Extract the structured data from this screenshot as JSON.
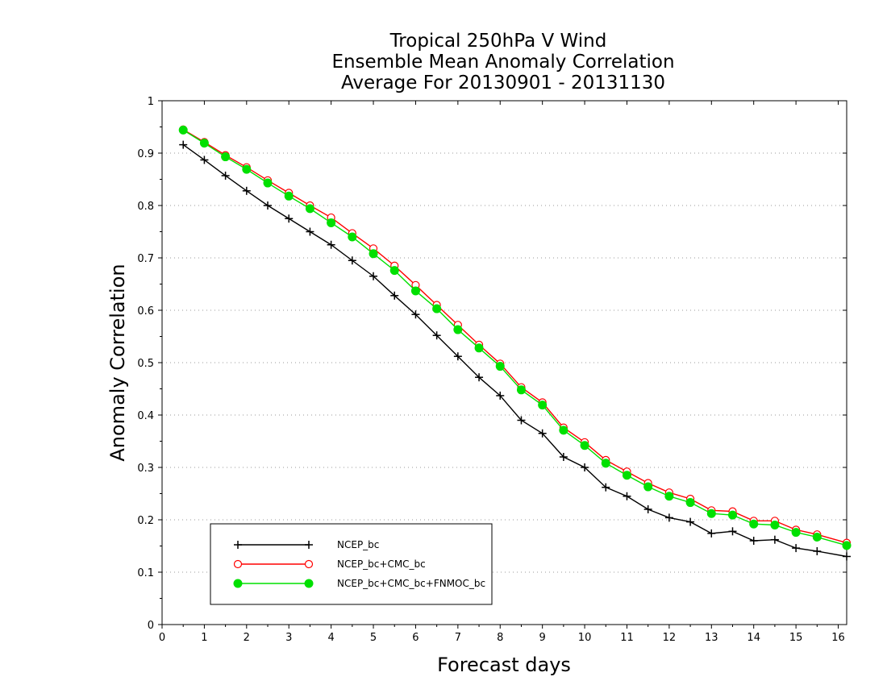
{
  "chart_data": {
    "type": "line",
    "title": [
      "Tropical 250hPa V Wind",
      "Ensemble Mean Anomaly Correlation",
      "Average For 20130901 - 20131130"
    ],
    "xlabel": "Forecast days",
    "ylabel": "Anomaly Correlation",
    "xlim": [
      0,
      16.2
    ],
    "ylim": [
      0,
      1
    ],
    "xticks": [
      0,
      1,
      2,
      3,
      4,
      5,
      6,
      7,
      8,
      9,
      10,
      11,
      12,
      13,
      14,
      15,
      16
    ],
    "yticks": [
      0,
      0.1,
      0.2,
      0.3,
      0.4,
      0.5,
      0.6,
      0.7,
      0.8,
      0.9,
      1
    ],
    "ytick_labels": [
      "0",
      "0.1",
      "0.2",
      "0.3",
      "0.4",
      "0.5",
      "0.6",
      "0.7",
      "0.8",
      "0.9",
      "1"
    ],
    "grid": "horizontal dotted",
    "legend_position": "bottom-left",
    "x": [
      0.5,
      1,
      1.5,
      2,
      2.5,
      3,
      3.5,
      4,
      4.5,
      5,
      5.5,
      6,
      6.5,
      7,
      7.5,
      8,
      8.5,
      9,
      9.5,
      10,
      10.5,
      11,
      11.5,
      12,
      12.5,
      13,
      13.5,
      14,
      14.5,
      15,
      15.5,
      16.2
    ],
    "series": [
      {
        "name": "NCEP_bc",
        "color": "#000000",
        "marker": "plus",
        "values": [
          0.916,
          0.887,
          0.857,
          0.828,
          0.8,
          0.775,
          0.75,
          0.725,
          0.695,
          0.665,
          0.628,
          0.592,
          0.552,
          0.512,
          0.472,
          0.437,
          0.39,
          0.365,
          0.32,
          0.3,
          0.262,
          0.245,
          0.22,
          0.204,
          0.196,
          0.174,
          0.178,
          0.16,
          0.162,
          0.146,
          0.14,
          0.13
        ]
      },
      {
        "name": "NCEP_bc+CMC_bc",
        "color": "#ff0000",
        "marker": "open-circle",
        "values": [
          0.945,
          0.921,
          0.896,
          0.873,
          0.848,
          0.824,
          0.8,
          0.777,
          0.747,
          0.718,
          0.685,
          0.648,
          0.61,
          0.572,
          0.534,
          0.498,
          0.453,
          0.424,
          0.376,
          0.348,
          0.314,
          0.292,
          0.27,
          0.252,
          0.24,
          0.218,
          0.216,
          0.198,
          0.198,
          0.181,
          0.172,
          0.156
        ]
      },
      {
        "name": "NCEP_bc+CMC_bc+FNMOC_bc",
        "color": "#00e000",
        "marker": "filled-circle",
        "values": [
          0.944,
          0.919,
          0.893,
          0.869,
          0.843,
          0.818,
          0.794,
          0.767,
          0.74,
          0.708,
          0.676,
          0.637,
          0.603,
          0.563,
          0.528,
          0.493,
          0.448,
          0.419,
          0.371,
          0.342,
          0.308,
          0.285,
          0.263,
          0.245,
          0.233,
          0.212,
          0.209,
          0.192,
          0.19,
          0.176,
          0.167,
          0.151
        ]
      }
    ]
  }
}
